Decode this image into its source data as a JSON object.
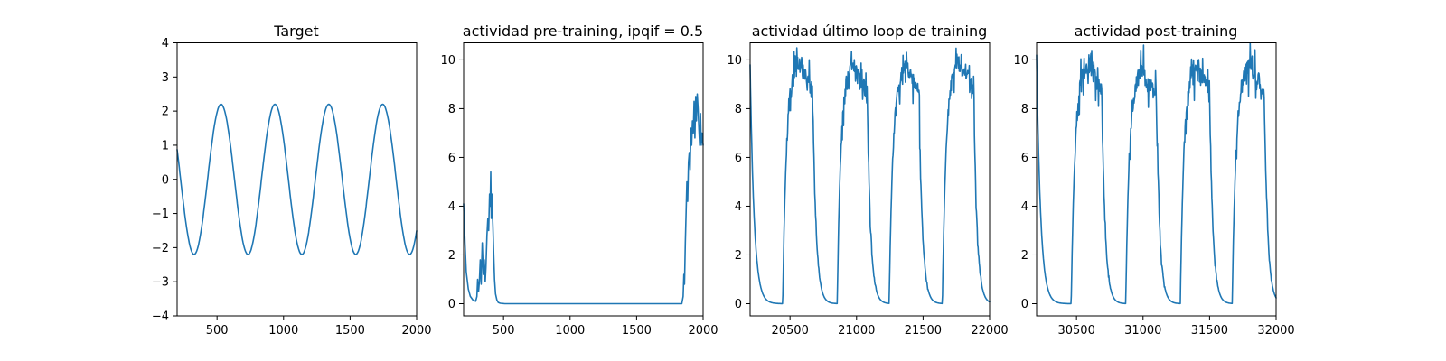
{
  "figure": {
    "background": "#ffffff",
    "line_color": "#1f77b4"
  },
  "chart_data": [
    {
      "type": "line",
      "title": "Target",
      "xlabel": "",
      "ylabel": "",
      "xlim": [
        200,
        2000
      ],
      "ylim": [
        -4,
        4
      ],
      "xticks": [
        500,
        1000,
        1500,
        2000
      ],
      "yticks": [
        -4,
        -3,
        -2,
        -1,
        0,
        1,
        2,
        3,
        4
      ],
      "grid": false,
      "series": [
        {
          "generator": "sine",
          "x_start": 200,
          "x_end": 2000,
          "amplitude": 2.2,
          "period": 405,
          "peak_x": 530
        }
      ]
    },
    {
      "type": "line",
      "title": "actividad pre-training, ipqif = 0.5",
      "xlabel": "",
      "ylabel": "",
      "xlim": [
        200,
        2000
      ],
      "ylim": [
        -0.5,
        10.7
      ],
      "xticks": [
        500,
        1000,
        1500,
        2000
      ],
      "yticks": [
        0,
        2,
        4,
        6,
        8,
        10
      ],
      "grid": false,
      "series": [
        {
          "x": [
            200,
            210,
            220,
            235,
            250,
            270,
            290,
            300,
            305,
            312,
            318,
            325,
            332,
            340,
            348,
            355,
            362,
            368,
            375,
            382,
            388,
            395,
            400,
            404,
            408,
            412,
            416,
            420,
            426,
            432,
            440,
            450,
            460,
            475,
            490,
            510,
            540,
            600,
            800,
            1200,
            1600,
            1840,
            1850,
            1855,
            1860,
            1866,
            1872,
            1878,
            1884,
            1890,
            1896,
            1902,
            1908,
            1914,
            1920,
            1926,
            1932,
            1938,
            1944,
            1950,
            1956,
            1962,
            1968,
            1974,
            1980,
            1986,
            1992,
            2000
          ],
          "y": [
            4.1,
            2.5,
            1.3,
            0.6,
            0.3,
            0.15,
            0.1,
            0.3,
            1.0,
            0.5,
            0.9,
            1.8,
            0.8,
            2.5,
            1.2,
            1.8,
            0.9,
            1.5,
            2.8,
            3.5,
            3.0,
            4.5,
            4.0,
            5.4,
            3.5,
            4.5,
            3.8,
            3.2,
            2.0,
            1.0,
            0.4,
            0.15,
            0.05,
            0.02,
            0.01,
            0.0,
            0.0,
            0.0,
            0.0,
            0.0,
            0.0,
            0.0,
            0.3,
            1.2,
            0.8,
            2.5,
            3.8,
            5.0,
            4.2,
            5.8,
            6.2,
            5.5,
            7.2,
            6.5,
            7.5,
            7.0,
            8.3,
            6.8,
            8.5,
            7.5,
            8.6,
            8.0,
            7.2,
            6.5,
            7.8,
            6.5,
            7.0,
            6.5
          ]
        }
      ]
    },
    {
      "type": "line",
      "title": "actividad último loop de training",
      "xlabel": "",
      "ylabel": "",
      "xlim": [
        20200,
        22000
      ],
      "ylim": [
        -0.5,
        10.7
      ],
      "xticks": [
        20500,
        21000,
        21500,
        22000
      ],
      "yticks": [
        0,
        2,
        4,
        6,
        8,
        10
      ],
      "grid": false,
      "series": [
        {
          "generator": "pulse",
          "x_start": 20200,
          "x_end": 22000,
          "start_value": 9.8,
          "start_decay": 30,
          "pulses": [
            {
              "onset": 20445,
              "peak": 20590,
              "plateau": 10.0,
              "end": 20670
            },
            {
              "onset": 20855,
              "peak": 20990,
              "plateau": 9.8,
              "end": 21080
            },
            {
              "onset": 21245,
              "peak": 21390,
              "plateau": 9.8,
              "end": 21470
            },
            {
              "onset": 21645,
              "peak": 21790,
              "plateau": 10.0,
              "end": 21880
            }
          ],
          "rise_tau": 38,
          "fall_tau": 25,
          "noise": 0.35
        }
      ]
    },
    {
      "type": "line",
      "title": "actividad post-training",
      "xlabel": "",
      "ylabel": "",
      "xlim": [
        30200,
        32000
      ],
      "ylim": [
        -0.5,
        10.7
      ],
      "xticks": [
        30500,
        31000,
        31500,
        32000
      ],
      "yticks": [
        0,
        2,
        4,
        6,
        8,
        10
      ],
      "grid": false,
      "series": [
        {
          "generator": "pulse",
          "x_start": 30200,
          "x_end": 32000,
          "start_value": 10.2,
          "start_decay": 30,
          "pulses": [
            {
              "onset": 30460,
              "peak": 30610,
              "plateau": 9.9,
              "end": 30690
            },
            {
              "onset": 30870,
              "peak": 31010,
              "plateau": 9.6,
              "end": 31100
            },
            {
              "onset": 31280,
              "peak": 31420,
              "plateau": 9.8,
              "end": 31500
            },
            {
              "onset": 31670,
              "peak": 31820,
              "plateau": 9.9,
              "end": 31910
            }
          ],
          "rise_tau": 38,
          "fall_tau": 25,
          "noise": 0.4
        }
      ]
    }
  ]
}
